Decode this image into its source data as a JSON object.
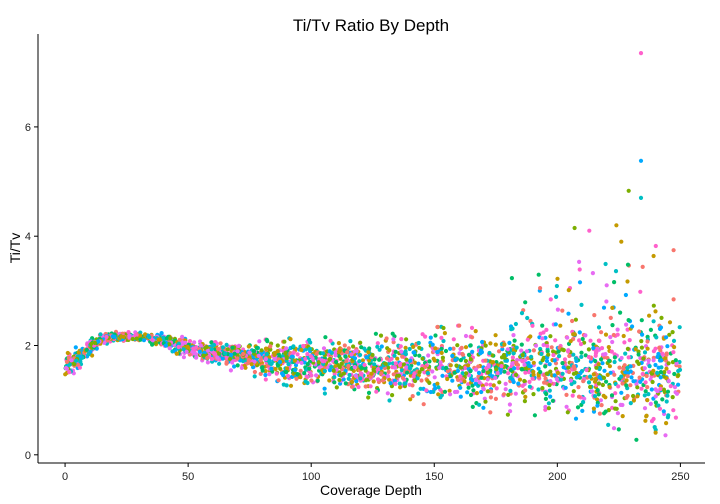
{
  "chart_data": {
    "type": "scatter",
    "title": "Ti/Tv Ratio By Depth",
    "xlabel": "Coverage Depth",
    "ylabel": "Ti/Tv",
    "xlim": [
      -11,
      260
    ],
    "ylim": [
      -0.15,
      7.7
    ],
    "x_ticks": [
      0,
      50,
      100,
      150,
      200,
      250
    ],
    "y_ticks": [
      0,
      2,
      4,
      6
    ],
    "grid": false,
    "legend": "none",
    "series_colors": [
      "#F8766D",
      "#E76BF3",
      "#00BFC4",
      "#00A9FF",
      "#7CAE00",
      "#C49A00",
      "#00BE67",
      "#FF61CC"
    ],
    "trend": {
      "x": [
        0,
        5,
        10,
        15,
        20,
        30,
        40,
        50,
        70,
        100,
        150,
        200,
        250
      ],
      "y": [
        1.6,
        1.75,
        1.95,
        2.12,
        2.17,
        2.15,
        2.1,
        1.95,
        1.8,
        1.65,
        1.62,
        1.55,
        1.45
      ]
    },
    "spread": {
      "x": [
        0,
        15,
        30,
        50,
        70,
        100,
        150,
        200,
        225,
        250
      ],
      "y": [
        0.22,
        0.08,
        0.06,
        0.14,
        0.2,
        0.35,
        0.5,
        0.65,
        0.85,
        0.9
      ]
    },
    "outliers": [
      {
        "x": 234,
        "y": 7.35
      },
      {
        "x": 234,
        "y": 5.38
      },
      {
        "x": 229,
        "y": 4.83
      },
      {
        "x": 234,
        "y": 4.7
      },
      {
        "x": 207,
        "y": 4.15
      },
      {
        "x": 224,
        "y": 4.2
      },
      {
        "x": 213,
        "y": 4.1
      },
      {
        "x": 240,
        "y": 3.82
      },
      {
        "x": 226,
        "y": 3.9
      },
      {
        "x": 193,
        "y": 3.05
      }
    ]
  }
}
